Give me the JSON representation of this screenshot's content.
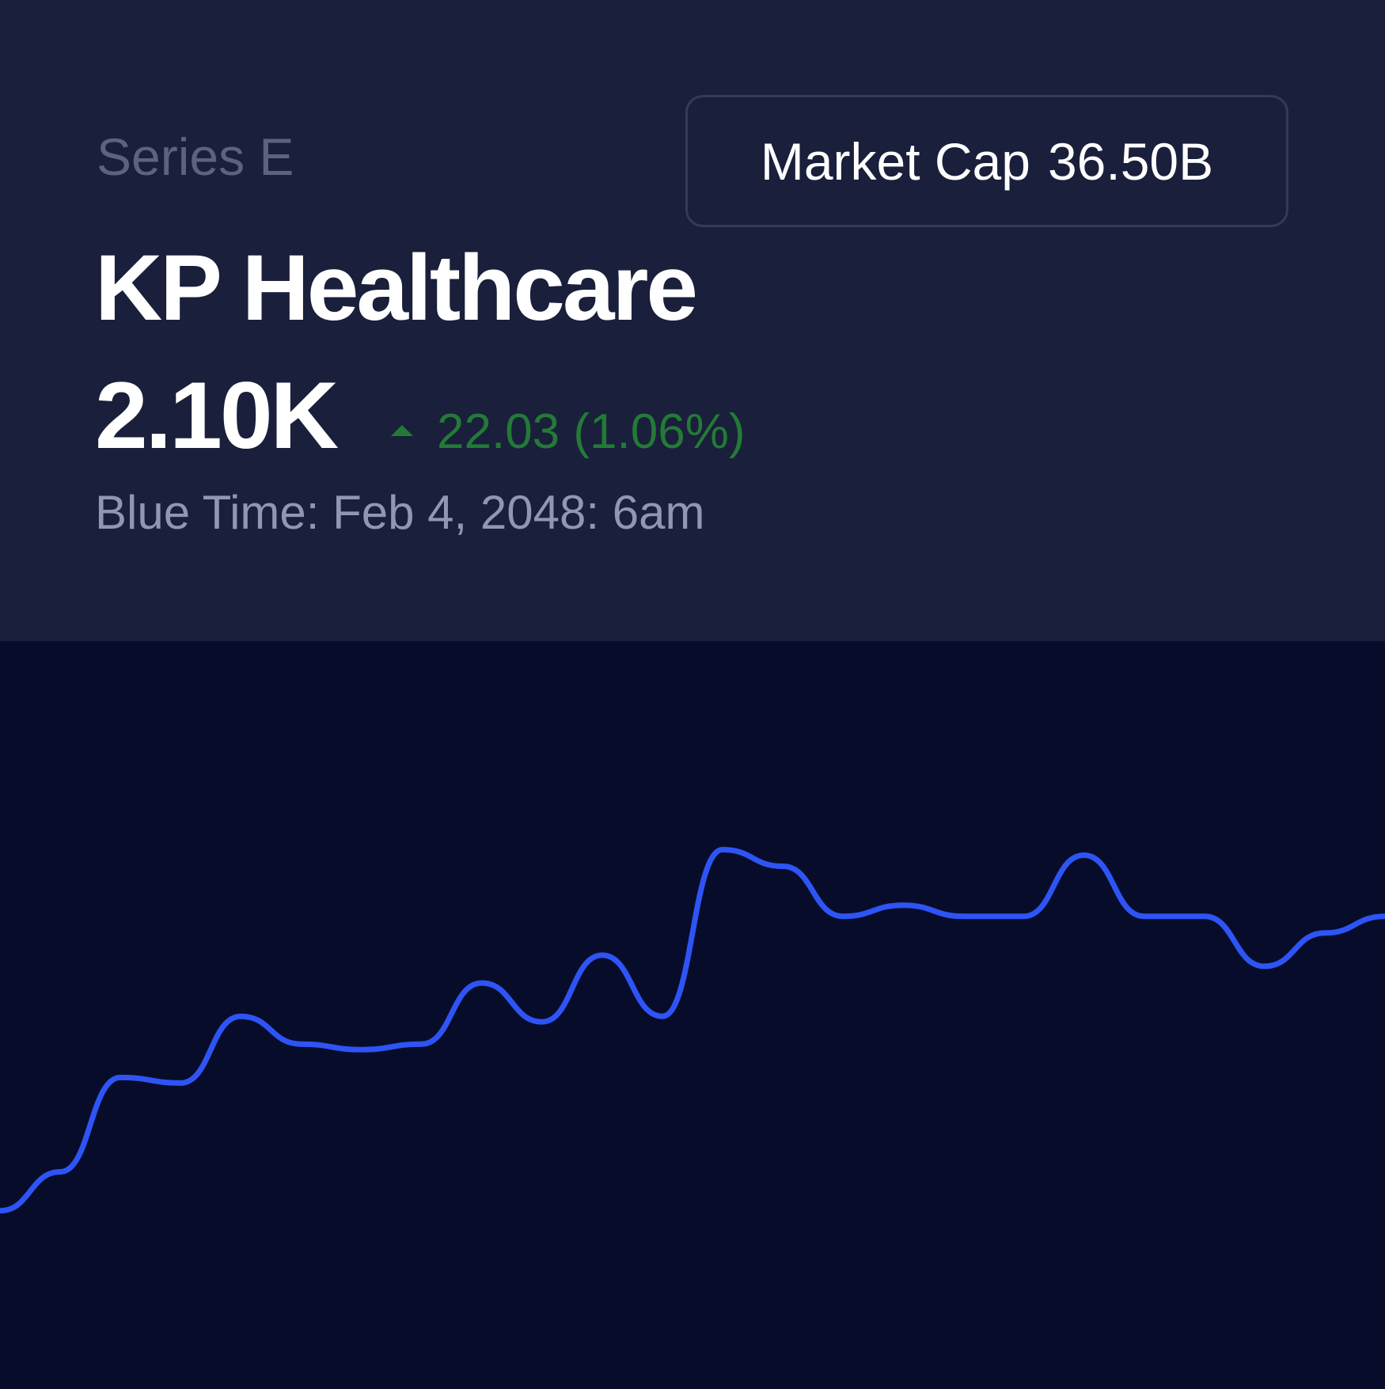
{
  "header": {
    "series": "Series E",
    "market_cap_label": "Market Cap",
    "market_cap_value": "36.50B",
    "company_name": "KP Healthcare",
    "price": "2.10K",
    "change": "22.03 (1.06%)",
    "change_direction": "up",
    "timestamp": "Blue Time: Feb 4, 2048: 6am"
  },
  "colors": {
    "header_bg": "#1a1f3b",
    "chart_bg": "#070c2a",
    "positive": "#237a37",
    "line": "#2e54f5"
  },
  "chart_data": {
    "type": "line",
    "title": "",
    "xlabel": "",
    "ylabel": "",
    "ylim": [
      0,
      100
    ],
    "grid": false,
    "series": [
      {
        "values": [
          10,
          17,
          34,
          33,
          45,
          40,
          39,
          40,
          51,
          44,
          56,
          45,
          75,
          72,
          63,
          65,
          63,
          63,
          74,
          63,
          63,
          54,
          60,
          63
        ]
      }
    ]
  }
}
